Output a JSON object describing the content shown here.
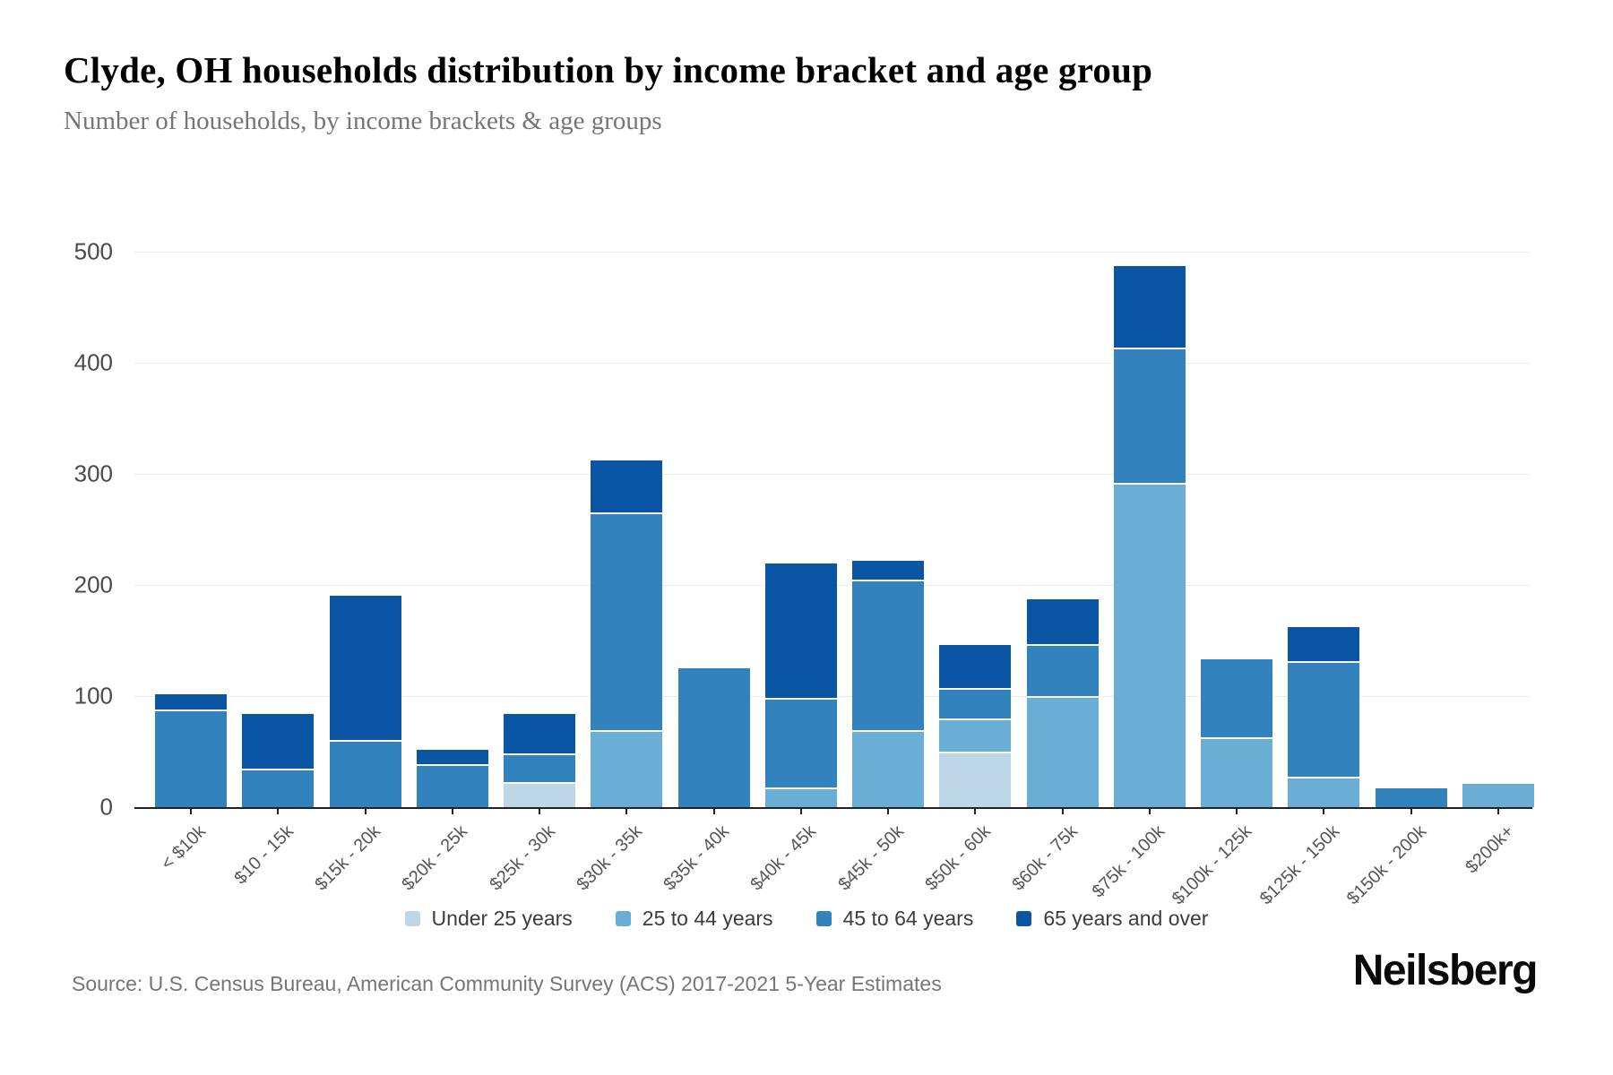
{
  "header": {
    "title": "Clyde, OH households distribution by income bracket and age group",
    "subtitle": "Number of households, by income brackets & age groups"
  },
  "chart_data": {
    "type": "bar",
    "stacked": true,
    "title": "Clyde, OH households distribution by income bracket and age group",
    "xlabel": "",
    "ylabel": "",
    "ylim": [
      0,
      500
    ],
    "yticks": [
      0,
      100,
      200,
      300,
      400,
      500
    ],
    "grid": "horizontal",
    "legend_position": "bottom",
    "categories": [
      "< $10k",
      "$10 - 15k",
      "$15k - 20k",
      "$20k - 25k",
      "$25k - 30k",
      "$30k - 35k",
      "$35k - 40k",
      "$40k - 45k",
      "$45k - 50k",
      "$50k - 60k",
      "$60k - 75k",
      "$75k - 100k",
      "$100k - 125k",
      "$125k - 150k",
      "$150k - 200k",
      "$200k+"
    ],
    "series": [
      {
        "name": "Under 25 years",
        "color": "#bdd7e7",
        "values": [
          0,
          0,
          0,
          0,
          21,
          0,
          0,
          0,
          0,
          48,
          0,
          0,
          0,
          0,
          0,
          0
        ]
      },
      {
        "name": "25 to 44 years",
        "color": "#6aaed6",
        "values": [
          0,
          0,
          0,
          0,
          0,
          68,
          0,
          16,
          68,
          30,
          98,
          290,
          61,
          26,
          0,
          21
        ]
      },
      {
        "name": "45 to 64 years",
        "color": "#3182bd",
        "values": [
          86,
          33,
          59,
          37,
          26,
          196,
          125,
          81,
          135,
          28,
          47,
          122,
          72,
          104,
          17,
          0
        ]
      },
      {
        "name": "65 years and over",
        "color": "#0b55a5",
        "values": [
          16,
          51,
          131,
          15,
          37,
          48,
          0,
          122,
          19,
          40,
          42,
          75,
          0,
          32,
          0,
          0
        ]
      }
    ]
  },
  "footer": {
    "source": "Source: U.S. Census Bureau, American Community Survey (ACS) 2017-2021 5-Year Estimates",
    "brand": "Neilsberg"
  }
}
